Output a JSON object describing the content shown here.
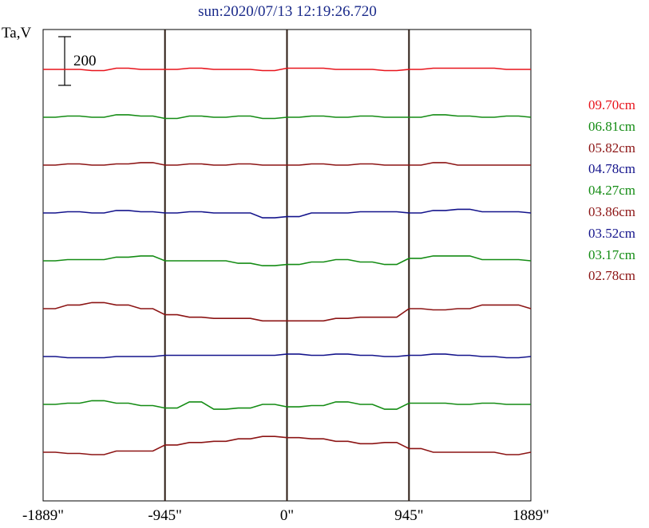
{
  "chart_data": {
    "type": "line",
    "title": "sun:2020/07/13 12:19:26.720",
    "ylabel": "Ta,V",
    "scale_bar_label": "200",
    "xticks": [
      "-1889\"",
      "-945\"",
      "0\"",
      "945\"",
      "1889\""
    ],
    "xtick_values": [
      -1889,
      -945,
      0,
      945,
      1889
    ],
    "xlim": [
      -1889,
      1889
    ],
    "vlines": [
      -945,
      0,
      945
    ],
    "grid": false,
    "legend_position": "right",
    "x": [
      -1889,
      -1700,
      -1511,
      -1322,
      -1133,
      -945,
      -756,
      -567,
      -378,
      -189,
      0,
      189,
      378,
      567,
      756,
      945,
      1133,
      1322,
      1511,
      1700,
      1889
    ],
    "series": [
      {
        "name": "09.70cm",
        "color": "#e8141c",
        "values": [
          0,
          0,
          -5,
          5,
          0,
          0,
          5,
          0,
          0,
          -5,
          5,
          5,
          0,
          0,
          -5,
          0,
          5,
          5,
          5,
          0,
          0
        ]
      },
      {
        "name": "06.81cm",
        "color": "#148c14",
        "values": [
          0,
          5,
          0,
          10,
          5,
          -5,
          5,
          0,
          5,
          -5,
          0,
          5,
          0,
          5,
          0,
          0,
          10,
          5,
          0,
          5,
          0
        ]
      },
      {
        "name": "05.82cm",
        "color": "#8c1414",
        "values": [
          0,
          5,
          0,
          5,
          10,
          0,
          5,
          0,
          5,
          0,
          0,
          5,
          0,
          5,
          0,
          0,
          10,
          0,
          0,
          0,
          0
        ]
      },
      {
        "name": "04.78cm",
        "color": "#14148c",
        "values": [
          0,
          5,
          0,
          10,
          5,
          0,
          5,
          0,
          0,
          -20,
          -15,
          0,
          0,
          5,
          5,
          0,
          10,
          15,
          5,
          5,
          0
        ]
      },
      {
        "name": "04.27cm",
        "color": "#148c14",
        "values": [
          0,
          5,
          5,
          15,
          20,
          0,
          0,
          0,
          -10,
          -20,
          -15,
          -5,
          5,
          -5,
          -15,
          10,
          20,
          20,
          5,
          5,
          0
        ]
      },
      {
        "name": "03.86cm",
        "color": "#8c1414",
        "values": [
          0,
          15,
          25,
          15,
          0,
          -25,
          -35,
          -40,
          -40,
          -50,
          -50,
          -50,
          -40,
          -35,
          -35,
          0,
          -5,
          0,
          15,
          15,
          0
        ]
      },
      {
        "name": "03.52cm",
        "color": "#14148c",
        "values": [
          0,
          -5,
          -5,
          0,
          0,
          5,
          5,
          5,
          5,
          5,
          10,
          5,
          10,
          5,
          0,
          5,
          10,
          5,
          0,
          -5,
          0
        ]
      },
      {
        "name": "03.17cm",
        "color": "#148c14",
        "values": [
          0,
          5,
          15,
          5,
          -5,
          -15,
          10,
          -20,
          -15,
          0,
          -10,
          -5,
          10,
          0,
          -20,
          5,
          5,
          0,
          5,
          0,
          0
        ]
      },
      {
        "name": "02.78cm",
        "color": "#8c1414",
        "values": [
          0,
          -5,
          -10,
          5,
          5,
          30,
          40,
          45,
          55,
          65,
          60,
          55,
          45,
          35,
          40,
          15,
          0,
          0,
          0,
          -10,
          0
        ]
      }
    ]
  }
}
